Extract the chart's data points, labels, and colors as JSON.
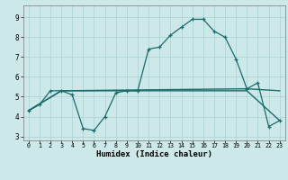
{
  "xlabel": "Humidex (Indice chaleur)",
  "background_color": "#cde8e8",
  "grid_color": "#b0d4d4",
  "line_color": "#1a6b6b",
  "line1_x": [
    0,
    1,
    2,
    3,
    4,
    5,
    6,
    7,
    8,
    9,
    10,
    11,
    12,
    13,
    14,
    15,
    16,
    17,
    18,
    19,
    20,
    21,
    22,
    23
  ],
  "line1_y": [
    4.3,
    4.6,
    5.3,
    5.3,
    5.1,
    3.4,
    3.3,
    4.0,
    5.2,
    5.3,
    5.3,
    7.4,
    7.5,
    8.1,
    8.5,
    8.9,
    8.9,
    8.3,
    8.0,
    6.9,
    5.4,
    5.7,
    3.5,
    3.8
  ],
  "line2_x": [
    0,
    3,
    20,
    23
  ],
  "line2_y": [
    4.3,
    5.3,
    5.4,
    5.3
  ],
  "line3_x": [
    0,
    3,
    20,
    23
  ],
  "line3_y": [
    4.3,
    5.3,
    5.3,
    3.8
  ],
  "xlim": [
    -0.5,
    23.5
  ],
  "ylim": [
    2.8,
    9.6
  ],
  "yticks": [
    3,
    4,
    5,
    6,
    7,
    8,
    9
  ],
  "xticks": [
    0,
    1,
    2,
    3,
    4,
    5,
    6,
    7,
    8,
    9,
    10,
    11,
    12,
    13,
    14,
    15,
    16,
    17,
    18,
    19,
    20,
    21,
    22,
    23
  ]
}
